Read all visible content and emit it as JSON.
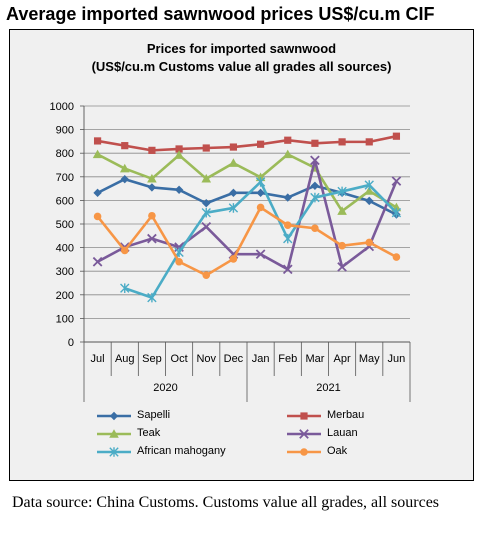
{
  "heading": "Average imported sawnwood prices US$/cu.m CIF",
  "source_note": "Data source: China Customs. Customs value all grades, all sources",
  "chart_data": {
    "type": "line",
    "title": "Prices for imported sawnwood",
    "subtitle": "(US$/cu.m Customs value all grades all sources)",
    "categories": [
      "Jul",
      "Aug",
      "Sep",
      "Oct",
      "Nov",
      "Dec",
      "Jan",
      "Feb",
      "Mar",
      "Apr",
      "May",
      "Jun"
    ],
    "year_labels": [
      "2020",
      "2021"
    ],
    "ylim": [
      0,
      1000
    ],
    "yticks": [
      0,
      100,
      200,
      300,
      400,
      500,
      600,
      700,
      800,
      900,
      1000
    ],
    "grid": true,
    "legend_position": "bottom",
    "series": [
      {
        "name": "Sapelli",
        "color": "#3a6ea5",
        "marker": "diamond",
        "values": [
          632,
          690,
          655,
          645,
          588,
          632,
          632,
          612,
          662,
          632,
          598,
          540
        ]
      },
      {
        "name": "Merbau",
        "color": "#c0504d",
        "marker": "square",
        "values": [
          852,
          832,
          812,
          818,
          822,
          826,
          838,
          855,
          842,
          848,
          848,
          872
        ]
      },
      {
        "name": "Teak",
        "color": "#9bbb59",
        "marker": "triangle",
        "values": [
          795,
          735,
          692,
          792,
          692,
          758,
          698,
          795,
          738,
          555,
          640,
          570
        ]
      },
      {
        "name": "Lauan",
        "color": "#7a5a9a",
        "marker": "x",
        "values": [
          340,
          402,
          438,
          402,
          488,
          372,
          372,
          308,
          770,
          318,
          405,
          682
        ]
      },
      {
        "name": "African mahogany",
        "color": "#4bacc6",
        "marker": "star",
        "values": [
          null,
          228,
          188,
          380,
          548,
          568,
          678,
          438,
          612,
          638,
          665,
          548
        ]
      },
      {
        "name": "Oak",
        "color": "#f79646",
        "marker": "circle",
        "values": [
          532,
          388,
          535,
          340,
          283,
          352,
          570,
          495,
          482,
          408,
          422,
          360
        ]
      }
    ]
  }
}
